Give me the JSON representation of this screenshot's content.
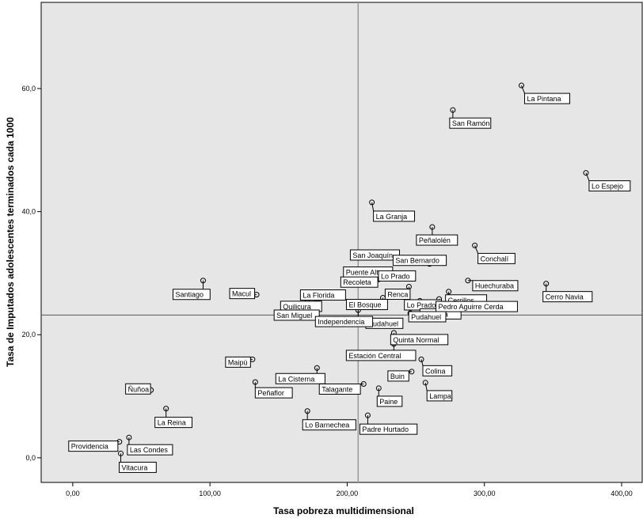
{
  "chart_data": {
    "type": "scatter",
    "xlabel": "Tasa pobreza multidimensional",
    "ylabel": "Tasa de Imputados adolescentes terminados cada 1000",
    "xlim": [
      -23,
      415
    ],
    "ylim": [
      -4,
      74
    ],
    "x_ticks": [
      {
        "value": 0,
        "label": "0,00"
      },
      {
        "value": 100,
        "label": "100,00"
      },
      {
        "value": 200,
        "label": "200,00"
      },
      {
        "value": 300,
        "label": "300,00"
      },
      {
        "value": 400,
        "label": "400,00"
      }
    ],
    "y_ticks": [
      {
        "value": 0,
        "label": "0,0"
      },
      {
        "value": 20,
        "label": "20,0"
      },
      {
        "value": 40,
        "label": "40,0"
      },
      {
        "value": 60,
        "label": "60,0"
      }
    ],
    "reference_lines": {
      "x": 208,
      "y": 23.2
    },
    "grid": false,
    "points": [
      {
        "label": "La Pintana",
        "x": 327,
        "y": 60.5
      },
      {
        "label": "San Ramón",
        "x": 277,
        "y": 56.5
      },
      {
        "label": "Lo Espejo",
        "x": 374,
        "y": 46.3
      },
      {
        "label": "La Granja",
        "x": 218,
        "y": 41.5
      },
      {
        "label": "Peñalolén",
        "x": 262,
        "y": 37.5
      },
      {
        "label": "Conchalí",
        "x": 293,
        "y": 34.5
      },
      {
        "label": "San Joaquín",
        "x": 230,
        "y": 32.5
      },
      {
        "label": "Puente Alto",
        "x": 210,
        "y": 30.5
      },
      {
        "label": "San Bernardo",
        "x": 260,
        "y": 31.5
      },
      {
        "label": "Lo Prado",
        "x": 224,
        "y": 30.0
      },
      {
        "label": "Recoleta",
        "x": 223,
        "y": 29.0
      },
      {
        "label": "Huechuraba",
        "x": 288,
        "y": 28.8
      },
      {
        "label": "Cerrillos",
        "x": 274,
        "y": 27.0
      },
      {
        "label": "Renca",
        "x": 245,
        "y": 27.8
      },
      {
        "label": "Cerro Navia",
        "x": 345,
        "y": 28.3
      },
      {
        "label": "Santiago",
        "x": 95,
        "y": 28.8
      },
      {
        "label": "Macul",
        "x": 134,
        "y": 26.5
      },
      {
        "label": "La Florida",
        "x": 189,
        "y": 26.0
      },
      {
        "label": "El Bosque",
        "x": 226,
        "y": 26.0
      },
      {
        "label": "Lo Prado",
        "x": 244,
        "y": 26.2
      },
      {
        "label": "Melipilla",
        "x": 253,
        "y": 25.5
      },
      {
        "label": "Pedro Aguirre Cerda",
        "x": 267,
        "y": 25.8
      },
      {
        "label": "Quilicura",
        "x": 178,
        "y": 25.7
      },
      {
        "label": "San Miguel",
        "x": 171,
        "y": 25.3
      },
      {
        "label": "Pudahuel",
        "x": 224,
        "y": 22.3
      },
      {
        "label": "Independencia",
        "x": 208,
        "y": 24.0
      },
      {
        "label": "Pudahuel",
        "x": 246,
        "y": 23.5
      },
      {
        "label": "Quinta Normal",
        "x": 234,
        "y": 20.3
      },
      {
        "label": "Maipú",
        "x": 131,
        "y": 16.0
      },
      {
        "label": "Estación Central",
        "x": 234,
        "y": 18.5
      },
      {
        "label": "Colina",
        "x": 254,
        "y": 16.0
      },
      {
        "label": "La Cisterna",
        "x": 178,
        "y": 14.6
      },
      {
        "label": "Buin",
        "x": 247,
        "y": 14.0
      },
      {
        "label": "Talagante",
        "x": 212,
        "y": 12.0
      },
      {
        "label": "Lampa",
        "x": 257,
        "y": 12.2
      },
      {
        "label": "Peñaflor",
        "x": 133,
        "y": 12.3
      },
      {
        "label": "Paine",
        "x": 223,
        "y": 11.3
      },
      {
        "label": "Ñuñoa",
        "x": 57,
        "y": 11.0
      },
      {
        "label": "La Reina",
        "x": 68,
        "y": 8.0
      },
      {
        "label": "Lo Barnechea",
        "x": 171,
        "y": 7.6
      },
      {
        "label": "Padre Hurtado",
        "x": 215,
        "y": 6.9
      },
      {
        "label": "Providencia",
        "x": 34,
        "y": 2.6
      },
      {
        "label": "Las Condes",
        "x": 41,
        "y": 3.3
      },
      {
        "label": "Vitacura",
        "x": 35,
        "y": 0.7
      }
    ]
  }
}
